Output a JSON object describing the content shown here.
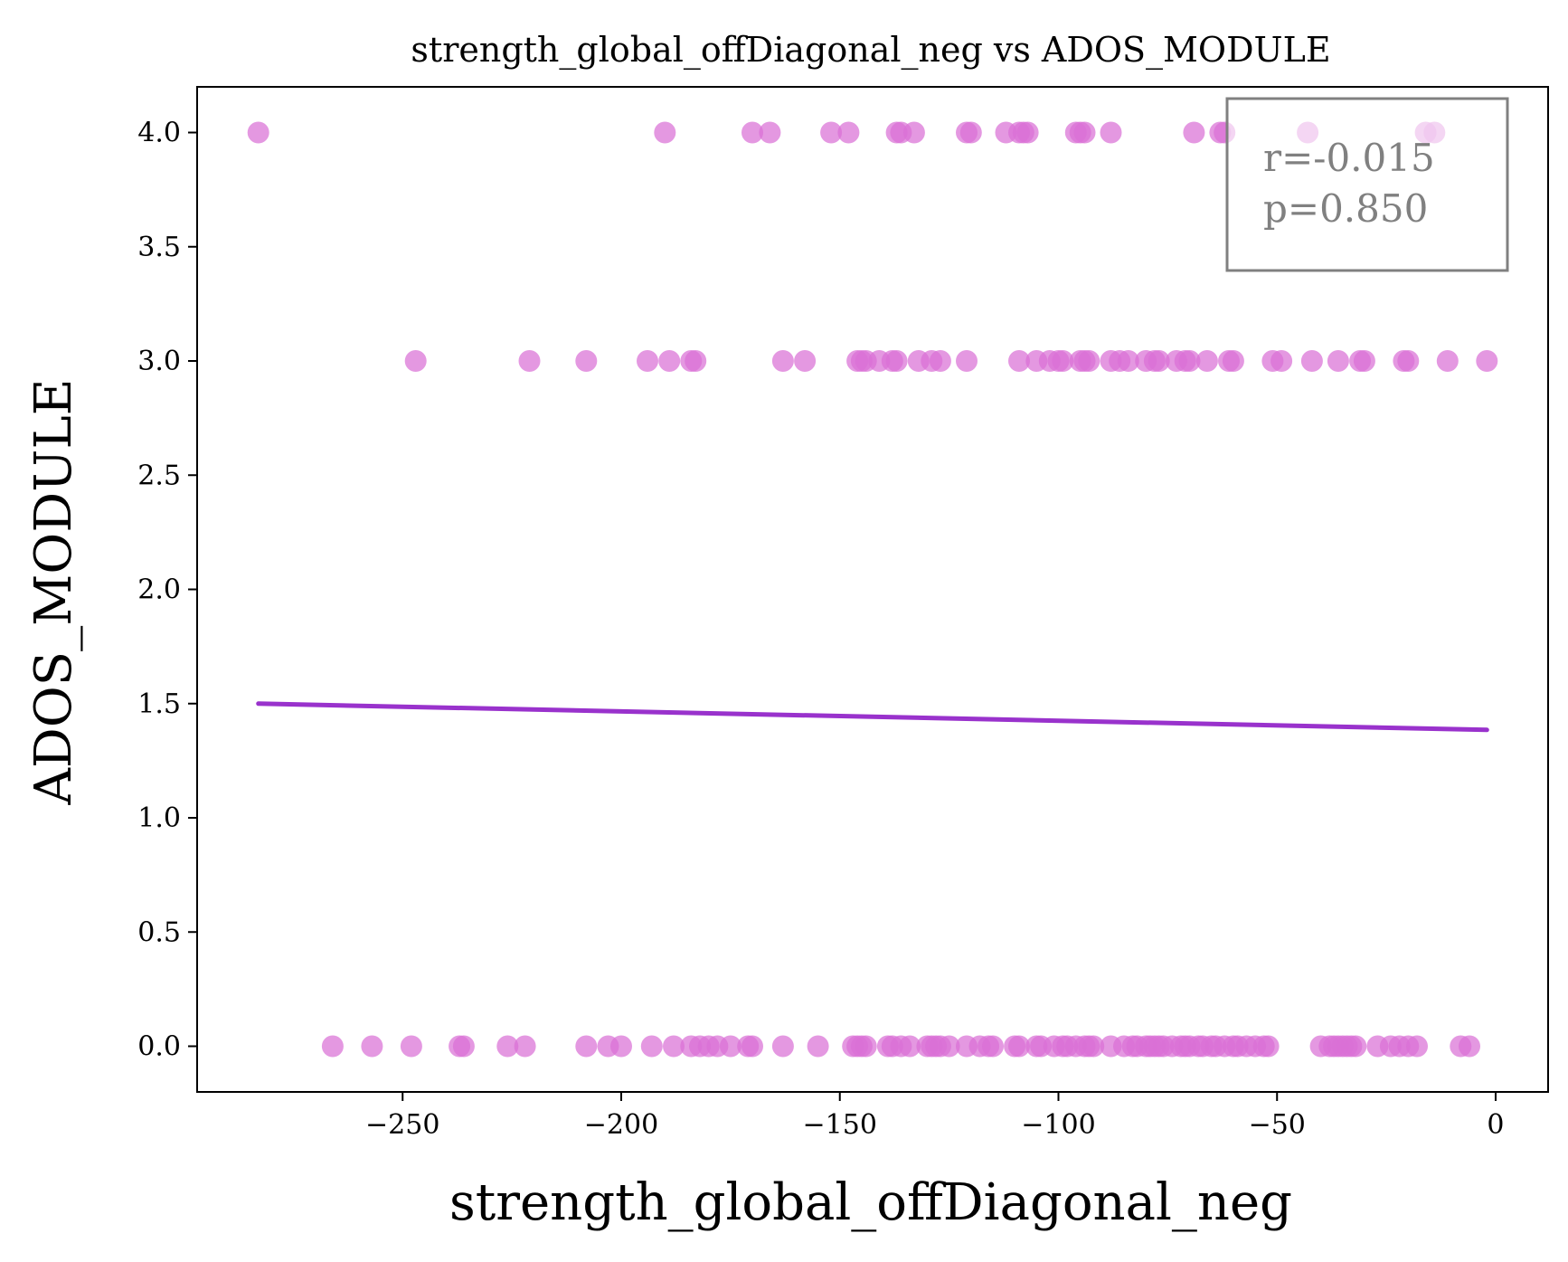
{
  "chart_data": {
    "type": "scatter",
    "title": "strength_global_offDiagonal_neg vs ADOS_MODULE",
    "xlabel": "strength_global_offDiagonal_neg",
    "ylabel": "ADOS_MODULE",
    "xlim": [
      -297,
      12
    ],
    "ylim": [
      -0.2,
      4.2
    ],
    "x_ticks": [
      -250,
      -200,
      -150,
      -100,
      -50,
      0
    ],
    "x_tick_labels": [
      "−250",
      "−200",
      "−150",
      "−100",
      "−50",
      "0"
    ],
    "y_ticks": [
      0.0,
      0.5,
      1.0,
      1.5,
      2.0,
      2.5,
      3.0,
      3.5,
      4.0
    ],
    "y_tick_labels": [
      "0.0",
      "0.5",
      "1.0",
      "1.5",
      "2.0",
      "2.5",
      "3.0",
      "3.5",
      "4.0"
    ],
    "grid": false,
    "point_color": "#da70d6",
    "line_color": "#9932cc",
    "series": [
      {
        "y": 4.0,
        "x": [
          -283,
          -190,
          -170,
          -166,
          -152,
          -148,
          -137,
          -136,
          -133,
          -121,
          -120,
          -112,
          -109,
          -108,
          -107,
          -96,
          -95,
          -94,
          -88,
          -69,
          -63,
          -62,
          -43,
          -16,
          -14
        ]
      },
      {
        "y": 3.0,
        "x": [
          -247,
          -221,
          -208,
          -194,
          -189,
          -184,
          -183,
          -163,
          -158,
          -146,
          -145,
          -144,
          -141,
          -138,
          -137,
          -132,
          -129,
          -127,
          -121,
          -109,
          -105,
          -102,
          -100,
          -99,
          -95,
          -94,
          -93,
          -88,
          -86,
          -84,
          -80,
          -78,
          -77,
          -73,
          -71,
          -70,
          -66,
          -61,
          -60,
          -51,
          -49,
          -42,
          -36,
          -31,
          -30,
          -21,
          -20,
          -11,
          -2
        ]
      },
      {
        "y": 0.0,
        "x": [
          -266,
          -257,
          -248,
          -237,
          -236,
          -226,
          -222,
          -208,
          -203,
          -200,
          -193,
          -188,
          -184,
          -182,
          -180,
          -178,
          -175,
          -171,
          -170,
          -163,
          -155,
          -147,
          -146,
          -145,
          -144,
          -139,
          -138,
          -136,
          -134,
          -130,
          -129,
          -128,
          -127,
          -125,
          -121,
          -118,
          -116,
          -115,
          -110,
          -109,
          -105,
          -104,
          -101,
          -99,
          -98,
          -96,
          -94,
          -93,
          -92,
          -88,
          -85,
          -83,
          -82,
          -80,
          -79,
          -78,
          -77,
          -76,
          -74,
          -72,
          -71,
          -70,
          -68,
          -67,
          -65,
          -64,
          -62,
          -60,
          -59,
          -57,
          -55,
          -53,
          -52,
          -40,
          -38,
          -37,
          -36,
          -35,
          -34,
          -33,
          -32,
          -27,
          -24,
          -22,
          -20,
          -18,
          -8,
          -6
        ]
      }
    ],
    "regression": {
      "x": [
        -283,
        -2
      ],
      "y": [
        1.5,
        1.385
      ]
    },
    "annotation": [
      "r=-0.015",
      "p=0.850"
    ]
  }
}
